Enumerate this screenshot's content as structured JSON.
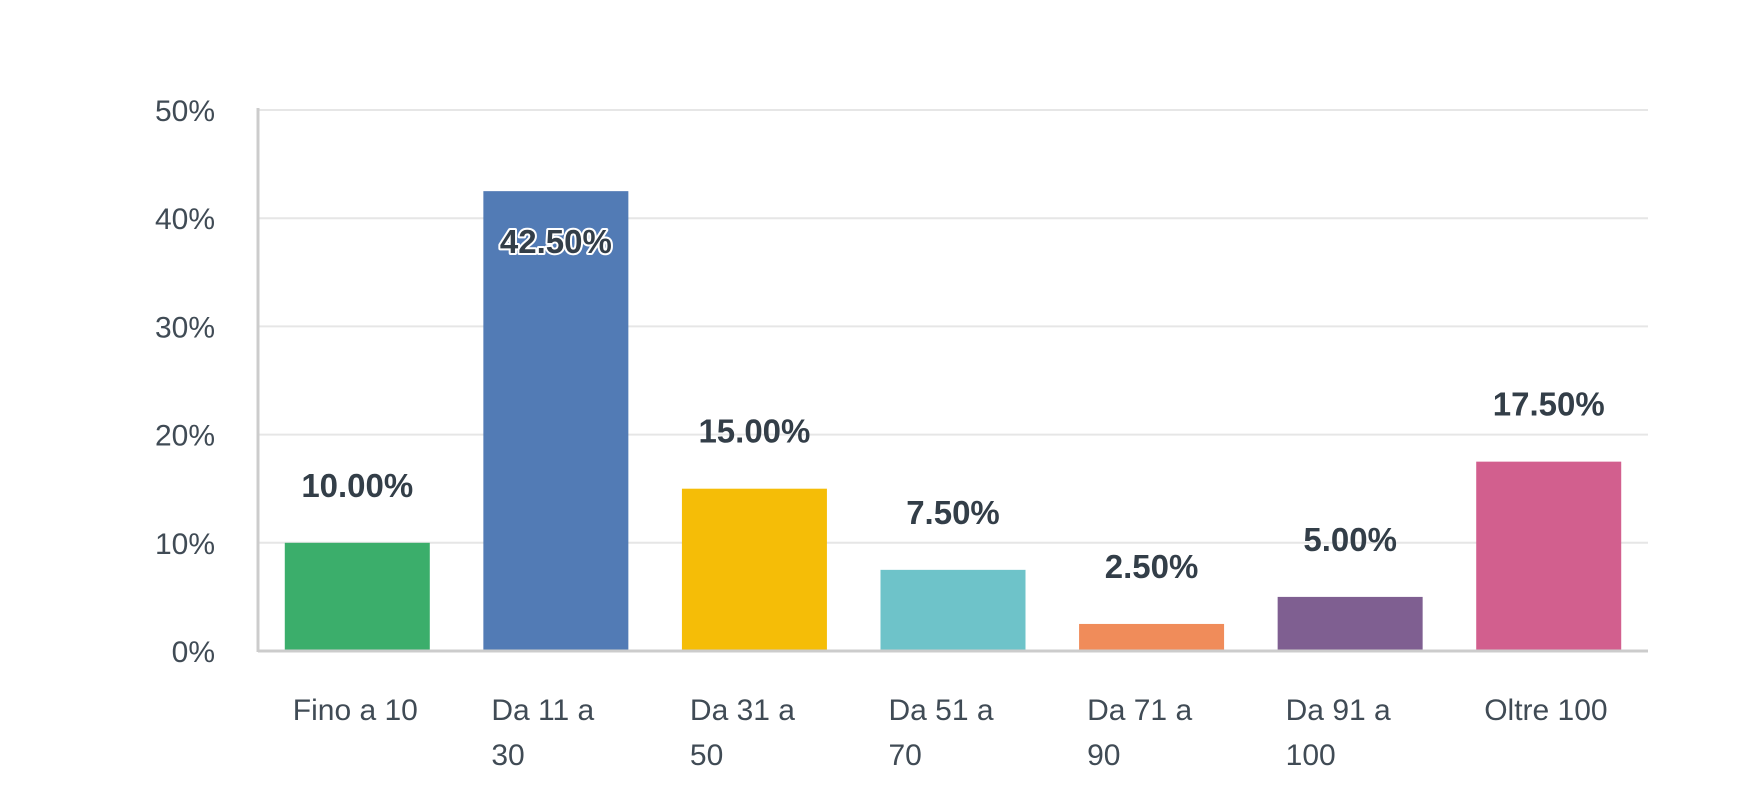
{
  "chart_data": {
    "type": "bar",
    "title": "",
    "xlabel": "",
    "ylabel": "",
    "categories": [
      [
        "Fino a 10"
      ],
      [
        "Da 11 a",
        "30"
      ],
      [
        "Da 31 a",
        "50"
      ],
      [
        "Da 51 a",
        "70"
      ],
      [
        "Da 71 a",
        "90"
      ],
      [
        "Da 91 a",
        "100"
      ],
      [
        "Oltre 100"
      ]
    ],
    "values": [
      10.0,
      42.5,
      15.0,
      7.5,
      2.5,
      5.0,
      17.5
    ],
    "value_labels": [
      "10.00%",
      "42.50%",
      "15.00%",
      "7.50%",
      "2.50%",
      "5.00%",
      "17.50%"
    ],
    "colors": [
      "#3bae6b",
      "#527bb5",
      "#f5bd07",
      "#6ec3c9",
      "#f08c5a",
      "#7f5f91",
      "#d25f8e"
    ],
    "ylim": [
      0,
      50
    ],
    "yticks": [
      0,
      10,
      20,
      30,
      40,
      50
    ],
    "ytick_labels": [
      "0%",
      "10%",
      "20%",
      "30%",
      "40%",
      "50%"
    ],
    "grid": true,
    "legend": "none"
  }
}
